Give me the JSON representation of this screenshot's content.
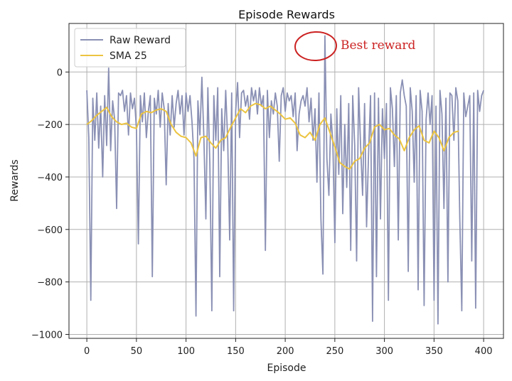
{
  "chart_data": {
    "type": "line",
    "title": "Episode Rewards",
    "xlabel": "Episode",
    "ylabel": "Rewards",
    "xlim": [
      -18,
      420
    ],
    "ylim": [
      -1015,
      185
    ],
    "xticks": [
      0,
      50,
      100,
      150,
      200,
      250,
      300,
      350,
      400
    ],
    "yticks": [
      -1000,
      -800,
      -600,
      -400,
      -200,
      0
    ],
    "grid": true,
    "legend_position": "top-left",
    "annotation": {
      "text": "Best reward",
      "color": "#cc2222",
      "x": 231,
      "y": 138
    },
    "series": [
      {
        "name": "Raw Reward",
        "color": "#8a90b4",
        "x": [
          0,
          2,
          4,
          6,
          8,
          10,
          12,
          14,
          16,
          18,
          20,
          22,
          24,
          26,
          28,
          30,
          32,
          34,
          36,
          38,
          40,
          42,
          44,
          46,
          48,
          50,
          52,
          54,
          56,
          58,
          60,
          62,
          64,
          66,
          68,
          70,
          72,
          74,
          76,
          78,
          80,
          82,
          84,
          86,
          88,
          90,
          92,
          94,
          96,
          98,
          100,
          102,
          104,
          106,
          108,
          110,
          112,
          114,
          116,
          118,
          120,
          122,
          124,
          126,
          128,
          130,
          132,
          134,
          136,
          138,
          140,
          142,
          144,
          146,
          148,
          150,
          152,
          154,
          156,
          158,
          160,
          162,
          164,
          166,
          168,
          170,
          172,
          174,
          176,
          178,
          180,
          182,
          184,
          186,
          188,
          190,
          192,
          194,
          196,
          198,
          200,
          202,
          204,
          206,
          208,
          210,
          212,
          214,
          216,
          218,
          220,
          222,
          224,
          226,
          228,
          230,
          232,
          234,
          236,
          238,
          240,
          242,
          244,
          246,
          248,
          250,
          252,
          254,
          256,
          258,
          260,
          262,
          264,
          266,
          268,
          270,
          272,
          274,
          276,
          278,
          280,
          282,
          284,
          286,
          288,
          290,
          292,
          294,
          296,
          298,
          300,
          302,
          304,
          306,
          308,
          310,
          312,
          314,
          316,
          318,
          320,
          322,
          324,
          326,
          328,
          330,
          332,
          334,
          336,
          338,
          340,
          342,
          344,
          346,
          348,
          350,
          352,
          354,
          356,
          358,
          360,
          362,
          364,
          366,
          368,
          370,
          372,
          374,
          376,
          378,
          380,
          382,
          384,
          386,
          388,
          390,
          392,
          394,
          396,
          398,
          400
        ],
        "values": [
          -70,
          -250,
          -870,
          -100,
          -260,
          -80,
          -290,
          -130,
          -400,
          -90,
          -280,
          15,
          -300,
          -110,
          -180,
          -520,
          -80,
          -90,
          -70,
          -150,
          -90,
          -240,
          -80,
          -140,
          -100,
          -220,
          -655,
          -90,
          -190,
          -80,
          -250,
          -150,
          -90,
          -780,
          -100,
          -160,
          -70,
          -210,
          -80,
          -140,
          -430,
          -120,
          -240,
          -90,
          -210,
          -120,
          -70,
          -160,
          -90,
          -240,
          -80,
          -150,
          -90,
          -190,
          -330,
          -930,
          -110,
          -240,
          -20,
          -250,
          -560,
          -60,
          -350,
          -910,
          -90,
          -260,
          -60,
          -780,
          -140,
          -300,
          -70,
          -260,
          -640,
          -80,
          -910,
          -150,
          -40,
          -250,
          -80,
          -70,
          -130,
          -90,
          -180,
          -60,
          -110,
          -70,
          -160,
          -60,
          -130,
          -90,
          -680,
          -70,
          -250,
          -110,
          -160,
          -80,
          -130,
          -340,
          -90,
          -60,
          -150,
          -80,
          -110,
          -90,
          -170,
          -80,
          -300,
          -160,
          -110,
          -90,
          -130,
          -60,
          -190,
          -100,
          -260,
          -140,
          -420,
          -80,
          -560,
          -770,
          138,
          -330,
          -470,
          -160,
          -270,
          -650,
          -140,
          -390,
          -90,
          -540,
          -200,
          -440,
          -120,
          -680,
          -90,
          -280,
          -720,
          -60,
          -280,
          -470,
          -120,
          -590,
          -310,
          -90,
          -950,
          -80,
          -780,
          -100,
          -560,
          -140,
          -330,
          -120,
          -870,
          -60,
          -140,
          -360,
          -90,
          -640,
          -80,
          -30,
          -90,
          -130,
          -760,
          -60,
          -150,
          -420,
          -90,
          -830,
          -70,
          -150,
          -890,
          -180,
          -80,
          -200,
          -90,
          -870,
          -130,
          -960,
          -70,
          -160,
          -520,
          -100,
          -800,
          -80,
          -90,
          -260,
          -60,
          -110,
          -560,
          -910,
          -80,
          -170,
          -130,
          -90,
          -720,
          -80,
          -900,
          -70,
          -150,
          -90,
          -70
        ]
      },
      {
        "name": "SMA 25",
        "color": "#ecc440",
        "x": [
          0,
          5,
          10,
          15,
          20,
          25,
          30,
          35,
          40,
          45,
          50,
          55,
          60,
          65,
          70,
          75,
          80,
          85,
          90,
          95,
          100,
          105,
          110,
          115,
          120,
          125,
          130,
          135,
          140,
          145,
          150,
          155,
          160,
          165,
          170,
          175,
          180,
          185,
          190,
          195,
          200,
          205,
          210,
          215,
          220,
          225,
          230,
          235,
          240,
          245,
          250,
          255,
          260,
          265,
          270,
          275,
          280,
          285,
          290,
          295,
          300,
          305,
          310,
          315,
          320,
          325,
          330,
          335,
          340,
          345,
          350,
          355,
          360,
          365,
          370,
          375
        ],
        "values": [
          -200,
          -185,
          -165,
          -150,
          -135,
          -170,
          -190,
          -200,
          -195,
          -210,
          -215,
          -160,
          -150,
          -155,
          -145,
          -140,
          -150,
          -200,
          -230,
          -245,
          -250,
          -270,
          -320,
          -250,
          -245,
          -270,
          -290,
          -260,
          -250,
          -210,
          -175,
          -140,
          -155,
          -130,
          -120,
          -125,
          -140,
          -130,
          -145,
          -160,
          -180,
          -175,
          -195,
          -240,
          -250,
          -230,
          -260,
          -200,
          -175,
          -230,
          -285,
          -345,
          -360,
          -370,
          -340,
          -330,
          -290,
          -270,
          -210,
          -200,
          -220,
          -215,
          -240,
          -255,
          -300,
          -250,
          -220,
          -205,
          -260,
          -270,
          -225,
          -250,
          -300,
          -250,
          -230,
          -225
        ]
      }
    ]
  }
}
